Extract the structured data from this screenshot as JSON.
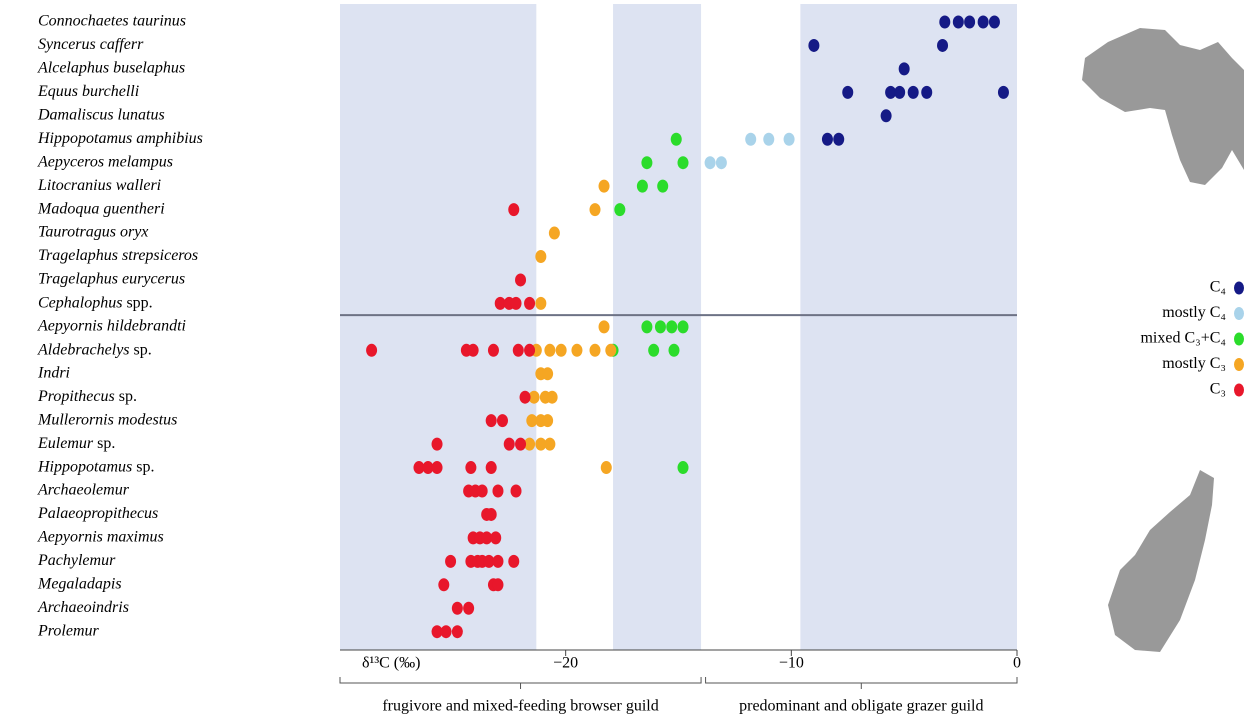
{
  "chart_data": {
    "type": "scatter",
    "categories": [
      "Connochaetes taurinus",
      "Syncerus cafferr",
      "Alcelaphus buselaphus",
      "Equus burchelli",
      "Damaliscus lunatus",
      "Hippopotamus amphibius",
      "Aepyceros melampus",
      "Litocranius walleri",
      "Madoqua guentheri",
      "Taurotragus oryx",
      "Tragelaphus strepsiceros",
      "Tragelaphus eurycerus",
      "Cephalophus spp.",
      "Aepyornis hildebrandti",
      "Aldebrachelys sp.",
      "Indri",
      "Propithecus sp.",
      "Mullerornis modestus",
      "Eulemur sp.",
      "Hippopotamus sp.",
      "Archaeolemur",
      "Palaeopropithecus",
      "Aepyornis maximus",
      "Pachylemur",
      "Megaladapis",
      "Archaeoindris",
      "Prolemur"
    ],
    "xlabel": "δ¹³C (‰)",
    "xlim": [
      -30,
      0
    ],
    "xticks": [
      {
        "value": -20,
        "label": "−20"
      },
      {
        "value": -10,
        "label": "−10"
      },
      0
    ],
    "bands": [
      [
        -30,
        -21.3
      ],
      [
        -17.9,
        -14
      ],
      [
        -9.6,
        0
      ]
    ],
    "band_color": "#dde3f2",
    "legend": "right",
    "annotations": [
      {
        "label": "frugivore and mixed-feeding browser guild",
        "from": -30,
        "to": -14
      },
      {
        "label": "predominant and obligate grazer guild",
        "from": -13.8,
        "to": 0
      }
    ],
    "series": [
      {
        "name": "C₄",
        "color": "#151a86",
        "y": [
          "Connochaetes taurinus",
          "Connochaetes taurinus",
          "Connochaetes taurinus",
          "Connochaetes taurinus",
          "Connochaetes taurinus",
          "Syncerus cafferr",
          "Syncerus cafferr",
          "Alcelaphus buselaphus",
          "Equus burchelli",
          "Equus burchelli",
          "Equus burchelli",
          "Equus burchelli",
          "Equus burchelli",
          "Equus burchelli",
          "Damaliscus lunatus",
          "Hippopotamus amphibius",
          "Hippopotamus amphibius"
        ],
        "x": [
          -3.2,
          -2.6,
          -2.1,
          -1.5,
          -1.0,
          -9.0,
          -3.3,
          -5.0,
          -7.5,
          -5.6,
          -5.2,
          -4.6,
          -4.0,
          -0.6,
          -5.8,
          -8.4,
          -7.9
        ]
      },
      {
        "name": "mostly C₄",
        "color": "#a9d3ea",
        "y": [
          "Hippopotamus amphibius",
          "Hippopotamus amphibius",
          "Hippopotamus amphibius",
          "Aepyceros melampus",
          "Aepyceros melampus"
        ],
        "x": [
          -11.8,
          -11.0,
          -10.1,
          -13.6,
          -13.1
        ]
      },
      {
        "name": "mixed C₃+C₄",
        "color": "#2bdc2b",
        "y": [
          "Hippopotamus amphibius",
          "Aepyceros melampus",
          "Aepyceros melampus",
          "Litocranius walleri",
          "Litocranius walleri",
          "Madoqua guentheri",
          "Aepyornis hildebrandti",
          "Aepyornis hildebrandti",
          "Aepyornis hildebrandti",
          "Aepyornis hildebrandti",
          "Aldebrachelys sp.",
          "Aldebrachelys sp.",
          "Aldebrachelys sp.",
          "Hippopotamus sp."
        ],
        "x": [
          -15.1,
          -16.4,
          -14.8,
          -16.6,
          -15.7,
          -17.6,
          -16.4,
          -15.8,
          -15.3,
          -14.8,
          -17.9,
          -16.1,
          -15.2,
          -14.8
        ]
      },
      {
        "name": "mostly C₃",
        "color": "#f5a623",
        "y": [
          "Litocranius walleri",
          "Madoqua guentheri",
          "Taurotragus oryx",
          "Tragelaphus strepsiceros",
          "Cephalophus spp.",
          "Aepyornis hildebrandti",
          "Aldebrachelys sp.",
          "Aldebrachelys sp.",
          "Aldebrachelys sp.",
          "Aldebrachelys sp.",
          "Aldebrachelys sp.",
          "Aldebrachelys sp.",
          "Indri",
          "Indri",
          "Propithecus sp.",
          "Propithecus sp.",
          "Propithecus sp.",
          "Mullerornis modestus",
          "Mullerornis modestus",
          "Mullerornis modestus",
          "Eulemur sp.",
          "Eulemur sp.",
          "Eulemur sp.",
          "Hippopotamus sp."
        ],
        "x": [
          -18.3,
          -18.7,
          -20.5,
          -21.1,
          -21.1,
          -18.3,
          -21.3,
          -20.7,
          -20.2,
          -19.5,
          -18.7,
          -18.0,
          -21.1,
          -20.8,
          -21.4,
          -20.9,
          -20.6,
          -21.5,
          -21.1,
          -20.8,
          -21.6,
          -21.1,
          -20.7,
          -18.2
        ]
      },
      {
        "name": "C₃",
        "color": "#e8172b",
        "y": [
          "Madoqua guentheri",
          "Tragelaphus eurycerus",
          "Cephalophus spp.",
          "Cephalophus spp.",
          "Cephalophus spp.",
          "Cephalophus spp.",
          "Aldebrachelys sp.",
          "Aldebrachelys sp.",
          "Aldebrachelys sp.",
          "Aldebrachelys sp.",
          "Aldebrachelys sp.",
          "Aldebrachelys sp.",
          "Propithecus sp.",
          "Mullerornis modestus",
          "Mullerornis modestus",
          "Eulemur sp.",
          "Eulemur sp.",
          "Eulemur sp.",
          "Hippopotamus sp.",
          "Hippopotamus sp.",
          "Hippopotamus sp.",
          "Hippopotamus sp.",
          "Hippopotamus sp.",
          "Archaeolemur",
          "Archaeolemur",
          "Archaeolemur",
          "Archaeolemur",
          "Archaeolemur",
          "Palaeopropithecus",
          "Palaeopropithecus",
          "Aepyornis maximus",
          "Aepyornis maximus",
          "Aepyornis maximus",
          "Aepyornis maximus",
          "Pachylemur",
          "Pachylemur",
          "Pachylemur",
          "Pachylemur",
          "Pachylemur",
          "Pachylemur",
          "Pachylemur",
          "Megaladapis",
          "Megaladapis",
          "Megaladapis",
          "Archaeoindris",
          "Archaeoindris",
          "Prolemur",
          "Prolemur",
          "Prolemur"
        ],
        "x": [
          -22.3,
          -22.0,
          -22.9,
          -22.5,
          -22.2,
          -21.6,
          -28.6,
          -24.4,
          -24.1,
          -23.2,
          -22.1,
          -21.6,
          -21.8,
          -23.3,
          -22.8,
          -25.7,
          -22.5,
          -22.0,
          -26.5,
          -26.1,
          -25.7,
          -24.2,
          -23.3,
          -24.3,
          -24.0,
          -23.7,
          -23.0,
          -22.2,
          -23.5,
          -23.3,
          -24.1,
          -23.8,
          -23.5,
          -23.1,
          -25.1,
          -24.2,
          -23.9,
          -23.7,
          -23.4,
          -23.0,
          -22.3,
          -25.4,
          -23.2,
          -23.0,
          -24.8,
          -24.3,
          -25.7,
          -25.3,
          -24.8
        ]
      }
    ]
  }
}
